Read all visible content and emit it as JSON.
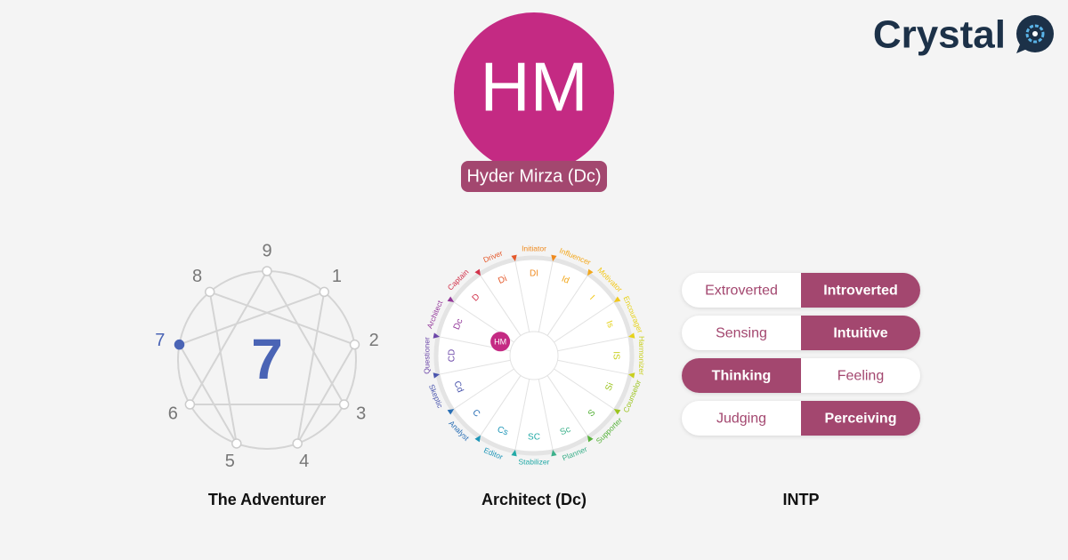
{
  "logo": {
    "text": "Crystal"
  },
  "profile": {
    "initials": "HM",
    "name": "Hyder Mirza (Dc)"
  },
  "enneagram": {
    "points": [
      1,
      2,
      3,
      4,
      5,
      6,
      7,
      8,
      9
    ],
    "type": 7,
    "caption": "The Adventurer"
  },
  "disc": {
    "segments": [
      {
        "code": "DI",
        "name": "Initiator",
        "color": "#ef8a1e"
      },
      {
        "code": "Id",
        "name": "Influencer",
        "color": "#f3a81c"
      },
      {
        "code": "I",
        "name": "Motivator",
        "color": "#f2c81b"
      },
      {
        "code": "Is",
        "name": "Encourager",
        "color": "#e6d21a"
      },
      {
        "code": "IS",
        "name": "Harmonizer",
        "color": "#c8cf1d"
      },
      {
        "code": "Si",
        "name": "Counselor",
        "color": "#9cc41f"
      },
      {
        "code": "S",
        "name": "Supporter",
        "color": "#57b23a"
      },
      {
        "code": "Sc",
        "name": "Planner",
        "color": "#3bb08a"
      },
      {
        "code": "SC",
        "name": "Stabilizer",
        "color": "#22a9a6"
      },
      {
        "code": "Cs",
        "name": "Editor",
        "color": "#1e96b8"
      },
      {
        "code": "C",
        "name": "Analyst",
        "color": "#2a6fb5"
      },
      {
        "code": "Cd",
        "name": "Skeptic",
        "color": "#4a55ad"
      },
      {
        "code": "CD",
        "name": "Questioner",
        "color": "#6b46a8"
      },
      {
        "code": "Dc",
        "name": "Architect",
        "color": "#93379a"
      },
      {
        "code": "D",
        "name": "Captain",
        "color": "#d2334b"
      },
      {
        "code": "Di",
        "name": "Driver",
        "color": "#e4582a"
      }
    ],
    "marker": {
      "label": "HM",
      "segment": "Dc"
    },
    "caption": "Architect (Dc)"
  },
  "mbti": {
    "pairs": [
      {
        "left": "Extroverted",
        "right": "Introverted",
        "selected": "Introverted"
      },
      {
        "left": "Sensing",
        "right": "Intuitive",
        "selected": "Intuitive"
      },
      {
        "left": "Thinking",
        "right": "Feeling",
        "selected": "Thinking"
      },
      {
        "left": "Judging",
        "right": "Perceiving",
        "selected": "Perceiving"
      }
    ],
    "caption": "INTP"
  }
}
